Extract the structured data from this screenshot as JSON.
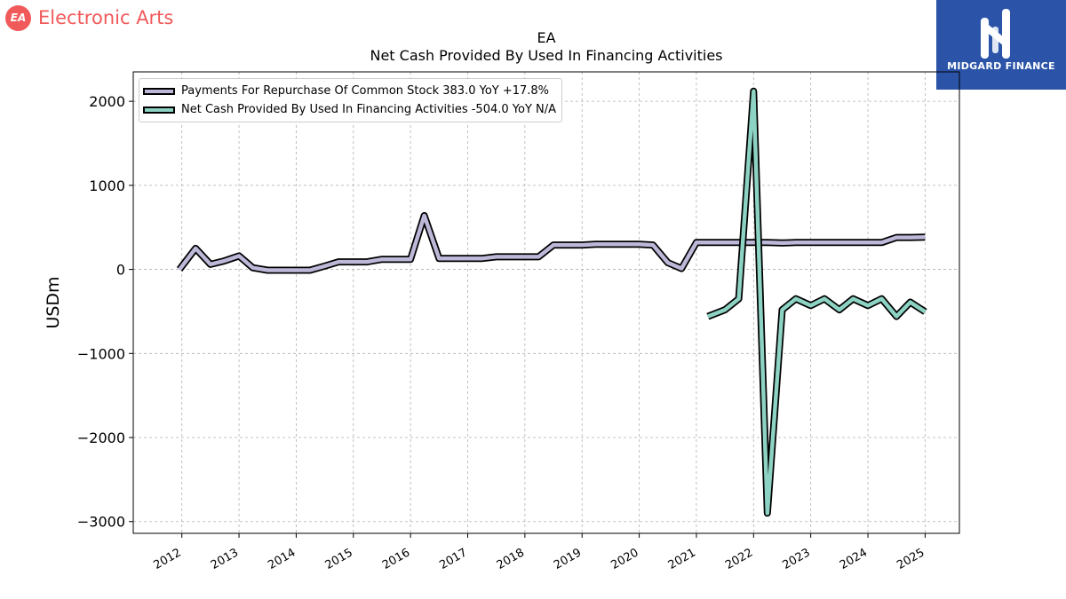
{
  "brand": {
    "name": "Electronic Arts",
    "mark": "EA",
    "color": "#f15a5a"
  },
  "logo": {
    "text": "MIDGARD FINANCE",
    "icon": "midgard-monogram-icon",
    "background": "#2b54a8"
  },
  "chart_data": {
    "type": "line",
    "title": "EA",
    "subtitle": "Net Cash Provided By Used In Financing Activities",
    "ylabel": "USDm",
    "xlabel": "",
    "ylim": [
      -3140,
      2350
    ],
    "xlim": [
      2011.15,
      2025.6
    ],
    "yticks": [
      2000,
      1000,
      0,
      -1000,
      -2000,
      -3000
    ],
    "ytick_labels": [
      "2000",
      "1000",
      "0",
      "−1000",
      "−2000",
      "−3000"
    ],
    "xticks": [
      2012,
      2013,
      2014,
      2015,
      2016,
      2017,
      2018,
      2019,
      2020,
      2021,
      2022,
      2023,
      2024,
      2025
    ],
    "xtick_labels": [
      "2012",
      "2013",
      "2014",
      "2015",
      "2016",
      "2017",
      "2018",
      "2019",
      "2020",
      "2021",
      "2022",
      "2023",
      "2024",
      "2025"
    ],
    "grid": true,
    "legend_position": "top-left",
    "series": [
      {
        "name": "Payments For Repurchase Of Common Stock",
        "legend_label": "Payments For Repurchase Of Common Stock  383.0 YoY +17.8%",
        "color": "#bcb8d8",
        "points": [
          [
            2011.96,
            0
          ],
          [
            2012.24,
            250
          ],
          [
            2012.5,
            60
          ],
          [
            2012.74,
            100
          ],
          [
            2013.0,
            160
          ],
          [
            2013.24,
            20
          ],
          [
            2013.5,
            -10
          ],
          [
            2013.74,
            -10
          ],
          [
            2014.0,
            -10
          ],
          [
            2014.24,
            -10
          ],
          [
            2014.5,
            40
          ],
          [
            2014.74,
            90
          ],
          [
            2015.0,
            90
          ],
          [
            2015.24,
            90
          ],
          [
            2015.5,
            120
          ],
          [
            2015.74,
            120
          ],
          [
            2016.0,
            120
          ],
          [
            2016.24,
            640
          ],
          [
            2016.5,
            130
          ],
          [
            2016.74,
            130
          ],
          [
            2017.0,
            130
          ],
          [
            2017.24,
            130
          ],
          [
            2017.5,
            150
          ],
          [
            2017.74,
            150
          ],
          [
            2018.0,
            150
          ],
          [
            2018.24,
            150
          ],
          [
            2018.5,
            290
          ],
          [
            2018.74,
            290
          ],
          [
            2019.0,
            290
          ],
          [
            2019.24,
            300
          ],
          [
            2019.5,
            300
          ],
          [
            2019.74,
            300
          ],
          [
            2020.0,
            300
          ],
          [
            2020.24,
            290
          ],
          [
            2020.5,
            80
          ],
          [
            2020.74,
            10
          ],
          [
            2021.0,
            320
          ],
          [
            2021.24,
            320
          ],
          [
            2021.5,
            320
          ],
          [
            2021.74,
            320
          ],
          [
            2022.0,
            320
          ],
          [
            2022.24,
            320
          ],
          [
            2022.5,
            315
          ],
          [
            2022.74,
            320
          ],
          [
            2023.0,
            320
          ],
          [
            2023.24,
            320
          ],
          [
            2023.5,
            320
          ],
          [
            2023.74,
            320
          ],
          [
            2024.0,
            320
          ],
          [
            2024.24,
            320
          ],
          [
            2024.5,
            380
          ],
          [
            2024.74,
            380
          ],
          [
            2025.0,
            383
          ]
        ]
      },
      {
        "name": "Net Cash Provided By Used In Financing Activities",
        "legend_label": "Net Cash Provided By Used In Financing Activities  -504.0 YoY N/A",
        "color": "#8dd3c3",
        "points": [
          [
            2021.2,
            -560
          ],
          [
            2021.5,
            -480
          ],
          [
            2021.74,
            -350
          ],
          [
            2022.0,
            2120
          ],
          [
            2022.24,
            -2900
          ],
          [
            2022.5,
            -480
          ],
          [
            2022.74,
            -350
          ],
          [
            2023.0,
            -430
          ],
          [
            2023.24,
            -350
          ],
          [
            2023.5,
            -480
          ],
          [
            2023.74,
            -350
          ],
          [
            2024.0,
            -430
          ],
          [
            2024.24,
            -350
          ],
          [
            2024.5,
            -560
          ],
          [
            2024.74,
            -390
          ],
          [
            2025.0,
            -504
          ]
        ]
      }
    ]
  }
}
